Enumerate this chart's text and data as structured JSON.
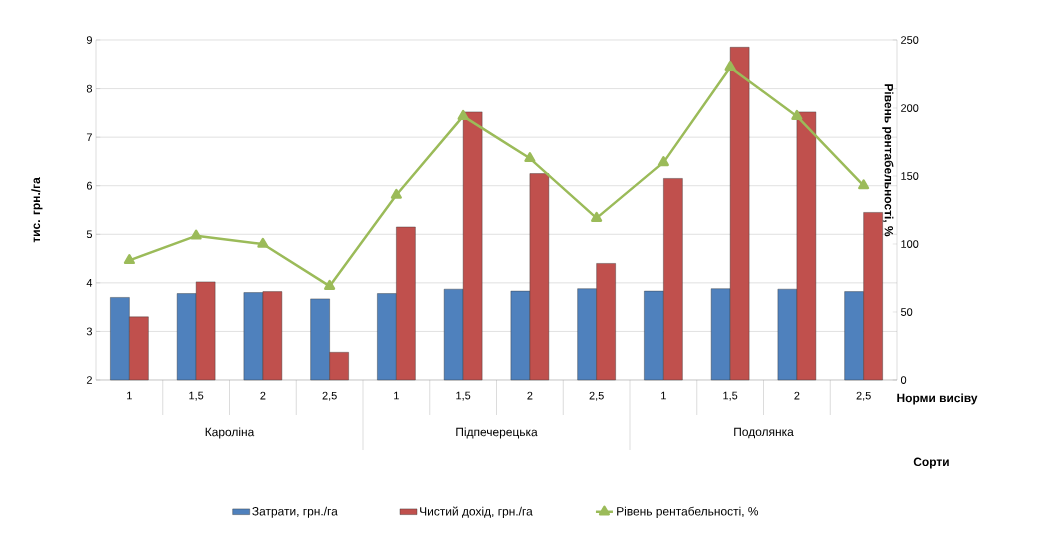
{
  "chart_data": {
    "type": "bar",
    "categories": [
      "1",
      "1,5",
      "2",
      "2,5",
      "1",
      "1,5",
      "2",
      "2,5",
      "1",
      "1,5",
      "2",
      "2,5"
    ],
    "series": [
      {
        "name": "Затрати, грн./га",
        "color": "#4f81bd",
        "values": [
          3.7,
          3.78,
          3.8,
          3.67,
          3.78,
          3.87,
          3.83,
          3.88,
          3.83,
          3.88,
          3.87,
          3.82
        ]
      },
      {
        "name": "Чистий дохід, грн./га",
        "color": "#c0504d",
        "values": [
          3.3,
          4.02,
          3.82,
          2.57,
          5.15,
          7.52,
          6.25,
          4.4,
          6.15,
          8.85,
          7.52,
          5.45
        ]
      },
      {
        "name": "Рівень рентабельності, %",
        "color": "#9bbb59",
        "type": "line",
        "axis": "y2",
        "marker": "triangle",
        "values": [
          88,
          106,
          100,
          69,
          136,
          194,
          163,
          119,
          160,
          230,
          194,
          143
        ]
      }
    ],
    "xlabel": "Норми висіву",
    "ylabel": "тис. грн./га",
    "y2label": "Рівень рентабельності, %",
    "annotations": [
      "Кароліна",
      "Підпечерецька",
      "Подолянка",
      "Сорти"
    ],
    "ylim": [
      2,
      9
    ],
    "yticks": [
      2,
      3,
      4,
      5,
      6,
      7,
      8,
      9
    ],
    "y2lim": [
      0,
      250
    ],
    "y2ticks": [
      0,
      50,
      100,
      150,
      200,
      250
    ],
    "grid": "y",
    "legend": "bottom"
  }
}
